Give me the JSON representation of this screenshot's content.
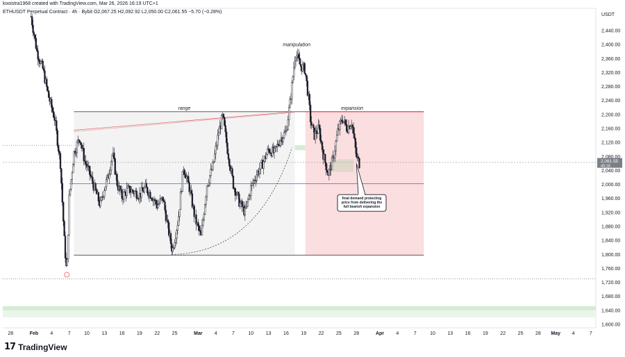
{
  "header": {
    "created_by": "kooistra1968 created with TradingView.com, Mar 26, 2026 16:19 UTC+1",
    "symbol_line": "ETHUSDT Perpetual Contract · 4h · Bybit  O2,067.25  H2,092.92  L2,050.00  C2,061.55  −5.70 (−0.28%)"
  },
  "brand": {
    "logo": "17",
    "name": "TradingView"
  },
  "colors": {
    "candle": "#1c1f2a",
    "range_fill": "#ebebeb",
    "expansion_fill": "#f9d3d6",
    "expansion_line": "#e05762",
    "green_zone": "#d4ecd5",
    "blue_level": "#3b3bd6"
  },
  "chart_data": {
    "type": "candlestick",
    "currency": "USDT",
    "y_ticks": [
      1600,
      1640,
      1680,
      1720,
      1760,
      1800,
      1840,
      1880,
      1920,
      1960,
      2000,
      2040,
      2080,
      2120,
      2160,
      2200,
      2240,
      2280,
      2320,
      2360,
      2400,
      2440
    ],
    "y_tick_labels": [
      "1,600.00",
      "1,640.00",
      "1,680.00",
      "1,720.00",
      "1,760.00",
      "1,800.00",
      "1,840.00",
      "1,880.00",
      "1,920.00",
      "1,960.00",
      "2,000.00",
      "2,040.00",
      "2,080.00",
      "2,120.00",
      "2,160.00",
      "2,200.00",
      "2,240.00",
      "2,280.00",
      "2,320.00",
      "2,360.00",
      "2,400.00",
      "2,440.00"
    ],
    "ylim": [
      1590,
      2480
    ],
    "x_ticks": [
      {
        "label": "28",
        "day": -4,
        "bold": false
      },
      {
        "label": "Feb",
        "day": 0,
        "bold": true
      },
      {
        "label": "4",
        "day": 3,
        "bold": false
      },
      {
        "label": "7",
        "day": 6,
        "bold": false
      },
      {
        "label": "10",
        "day": 9,
        "bold": false
      },
      {
        "label": "13",
        "day": 12,
        "bold": false
      },
      {
        "label": "16",
        "day": 15,
        "bold": false
      },
      {
        "label": "19",
        "day": 18,
        "bold": false
      },
      {
        "label": "22",
        "day": 21,
        "bold": false
      },
      {
        "label": "25",
        "day": 24,
        "bold": false
      },
      {
        "label": "Mar",
        "day": 28,
        "bold": true
      },
      {
        "label": "4",
        "day": 31,
        "bold": false
      },
      {
        "label": "7",
        "day": 34,
        "bold": false
      },
      {
        "label": "10",
        "day": 37,
        "bold": false
      },
      {
        "label": "13",
        "day": 40,
        "bold": false
      },
      {
        "label": "16",
        "day": 43,
        "bold": false
      },
      {
        "label": "19",
        "day": 46,
        "bold": false
      },
      {
        "label": "22",
        "day": 49,
        "bold": false
      },
      {
        "label": "25",
        "day": 52,
        "bold": false
      },
      {
        "label": "28",
        "day": 55,
        "bold": false
      },
      {
        "label": "Apr",
        "day": 59,
        "bold": true
      },
      {
        "label": "4",
        "day": 62,
        "bold": false
      },
      {
        "label": "7",
        "day": 65,
        "bold": false
      },
      {
        "label": "10",
        "day": 68,
        "bold": false
      },
      {
        "label": "13",
        "day": 71,
        "bold": false
      },
      {
        "label": "16",
        "day": 74,
        "bold": false
      },
      {
        "label": "19",
        "day": 77,
        "bold": false
      },
      {
        "label": "22",
        "day": 80,
        "bold": false
      },
      {
        "label": "25",
        "day": 83,
        "bold": false
      },
      {
        "label": "28",
        "day": 86,
        "bold": false
      },
      {
        "label": "May",
        "day": 89,
        "bold": true
      },
      {
        "label": "4",
        "day": 92,
        "bold": false
      },
      {
        "label": "7",
        "day": 95,
        "bold": false
      }
    ],
    "price_path": [
      {
        "day": -0.5,
        "price": 2480
      },
      {
        "day": 0.5,
        "price": 2380
      },
      {
        "day": 1.5,
        "price": 2330
      },
      {
        "day": 2.5,
        "price": 2250
      },
      {
        "day": 3.5,
        "price": 2190
      },
      {
        "day": 4.5,
        "price": 2060
      },
      {
        "day": 5.2,
        "price": 1830
      },
      {
        "day": 5.6,
        "price": 1740
      },
      {
        "day": 6.0,
        "price": 1960
      },
      {
        "day": 6.8,
        "price": 2090
      },
      {
        "day": 7.8,
        "price": 2135
      },
      {
        "day": 8.6,
        "price": 2070
      },
      {
        "day": 9.5,
        "price": 2030
      },
      {
        "day": 10.5,
        "price": 1980
      },
      {
        "day": 11.3,
        "price": 1940
      },
      {
        "day": 12.0,
        "price": 1990
      },
      {
        "day": 12.6,
        "price": 2020
      },
      {
        "day": 13.4,
        "price": 2090
      },
      {
        "day": 14.2,
        "price": 2000
      },
      {
        "day": 15.0,
        "price": 1965
      },
      {
        "day": 16.0,
        "price": 1985
      },
      {
        "day": 17.0,
        "price": 1980
      },
      {
        "day": 18.0,
        "price": 1970
      },
      {
        "day": 19.0,
        "price": 1990
      },
      {
        "day": 20.0,
        "price": 1970
      },
      {
        "day": 21.0,
        "price": 1940
      },
      {
        "day": 22.0,
        "price": 1960
      },
      {
        "day": 22.8,
        "price": 1880
      },
      {
        "day": 23.6,
        "price": 1810
      },
      {
        "day": 24.6,
        "price": 1900
      },
      {
        "day": 25.5,
        "price": 2050
      },
      {
        "day": 26.5,
        "price": 1990
      },
      {
        "day": 27.5,
        "price": 1900
      },
      {
        "day": 28.5,
        "price": 1850
      },
      {
        "day": 29.5,
        "price": 2000
      },
      {
        "day": 30.5,
        "price": 2050
      },
      {
        "day": 31.5,
        "price": 2150
      },
      {
        "day": 32.2,
        "price": 2195
      },
      {
        "day": 33.0,
        "price": 2100
      },
      {
        "day": 34.0,
        "price": 2000
      },
      {
        "day": 35.0,
        "price": 1950
      },
      {
        "day": 36.0,
        "price": 1920
      },
      {
        "day": 37.0,
        "price": 1990
      },
      {
        "day": 38.0,
        "price": 2030
      },
      {
        "day": 39.0,
        "price": 2060
      },
      {
        "day": 40.0,
        "price": 2100
      },
      {
        "day": 41.0,
        "price": 2090
      },
      {
        "day": 42.0,
        "price": 2130
      },
      {
        "day": 43.0,
        "price": 2150
      },
      {
        "day": 43.8,
        "price": 2250
      },
      {
        "day": 44.6,
        "price": 2380
      },
      {
        "day": 45.4,
        "price": 2340
      },
      {
        "day": 46.2,
        "price": 2330
      },
      {
        "day": 46.8,
        "price": 2250
      },
      {
        "day": 47.2,
        "price": 2180
      },
      {
        "day": 47.8,
        "price": 2140
      },
      {
        "day": 48.6,
        "price": 2160
      },
      {
        "day": 49.4,
        "price": 2080
      },
      {
        "day": 50.2,
        "price": 2030
      },
      {
        "day": 51.0,
        "price": 2070
      },
      {
        "day": 51.8,
        "price": 2150
      },
      {
        "day": 52.6,
        "price": 2190
      },
      {
        "day": 53.4,
        "price": 2160
      },
      {
        "day": 54.2,
        "price": 2180
      },
      {
        "day": 55.0,
        "price": 2080
      },
      {
        "day": 55.5,
        "price": 2060
      }
    ],
    "current_price": {
      "label": "2,061.55",
      "sub": "40:18",
      "value": 2061.55
    },
    "range_box": {
      "label": "range",
      "day_start": 6.8,
      "day_end": 44.5,
      "top": 2208,
      "bottom": 1798
    },
    "expansion_box": {
      "label": "expansion",
      "day_start": 46.3,
      "day_end": 66.5,
      "top": 2208,
      "bottom": 1798
    },
    "manipulation_label": {
      "text": "manipulation",
      "day": 44.8,
      "price": 2395
    },
    "green_zone_top": {
      "day_start": 44.5,
      "day_end": 46.3,
      "top": 2112,
      "bottom": 2098
    },
    "green_zone_bottom": {
      "top": 1652,
      "bottom": 1640
    },
    "demand_zone": {
      "day_start": 50.5,
      "day_end": 54.5,
      "top": 2072,
      "bottom": 2036
    },
    "ray_from": {
      "day": 6.8,
      "price": 2155
    },
    "ray_to": {
      "day": 44.5,
      "price": 2208
    },
    "arc_from": {
      "day": 24.0,
      "price": 1800
    },
    "arc_to": {
      "day": 44.0,
      "price": 2105
    },
    "level_dotted_1": 2112,
    "level_dotted_2": 1730,
    "level_blue": 2002,
    "level_grey_dotted": 2063,
    "swing_low_marker": {
      "day": 5.6,
      "price": 1740
    },
    "callout": {
      "text": "final demand protecting price from delivering the full bearish expansion",
      "lines": [
        "final demand protecting",
        "price from delivering the",
        "full bearish expansion"
      ],
      "day": 55.0,
      "price": 2060,
      "box_day": 55.8,
      "box_price": 1955
    }
  }
}
